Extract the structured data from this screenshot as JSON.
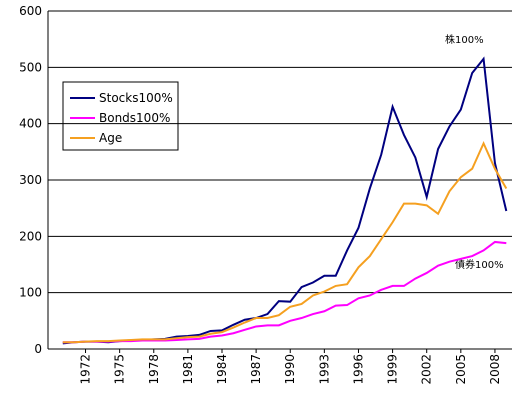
{
  "chart_data": {
    "type": "line",
    "x": [
      1970,
      1971,
      1972,
      1973,
      1974,
      1975,
      1976,
      1977,
      1978,
      1979,
      1980,
      1981,
      1982,
      1983,
      1984,
      1985,
      1986,
      1987,
      1988,
      1989,
      1990,
      1991,
      1992,
      1993,
      1994,
      1995,
      1996,
      1997,
      1998,
      1999,
      2000,
      2001,
      2002,
      2003,
      2004,
      2005,
      2006,
      2007,
      2008,
      2009
    ],
    "series": [
      {
        "name": "Stocks100%",
        "color": "#000080",
        "values": [
          10,
          12,
          13,
          13,
          12,
          14,
          15,
          16,
          17,
          18,
          22,
          23,
          25,
          32,
          33,
          43,
          52,
          55,
          62,
          85,
          84,
          110,
          118,
          130,
          130,
          175,
          215,
          285,
          345,
          430,
          380,
          340,
          270,
          355,
          395,
          425,
          490,
          515,
          330,
          245
        ]
      },
      {
        "name": "Bonds100%",
        "color": "#ff00ff",
        "values": [
          12,
          12,
          13,
          13,
          13,
          14,
          14,
          15,
          15,
          15,
          16,
          17,
          18,
          22,
          24,
          28,
          34,
          40,
          42,
          42,
          50,
          55,
          62,
          67,
          77,
          78,
          90,
          95,
          105,
          112,
          112,
          125,
          135,
          148,
          155,
          160,
          165,
          175,
          190,
          188
        ]
      },
      {
        "name": "Age",
        "color": "#f5a020",
        "values": [
          12,
          12,
          13,
          14,
          14,
          15,
          16,
          17,
          17,
          17,
          19,
          21,
          22,
          27,
          30,
          38,
          47,
          55,
          55,
          60,
          75,
          80,
          95,
          102,
          112,
          115,
          145,
          165,
          195,
          225,
          258,
          258,
          255,
          240,
          280,
          305,
          320,
          365,
          320,
          285
        ]
      }
    ],
    "annotations": [
      "株100%",
      "債券100%"
    ],
    "xlim": [
      1968.7,
      2009.5
    ],
    "xticks": [
      1972,
      1975,
      1978,
      1981,
      1984,
      1987,
      1990,
      1993,
      1996,
      1999,
      2002,
      2005,
      2008
    ],
    "ylim": [
      0,
      600
    ],
    "yticks": [
      0,
      100,
      200,
      300,
      400,
      500,
      600
    ],
    "grid": true
  }
}
